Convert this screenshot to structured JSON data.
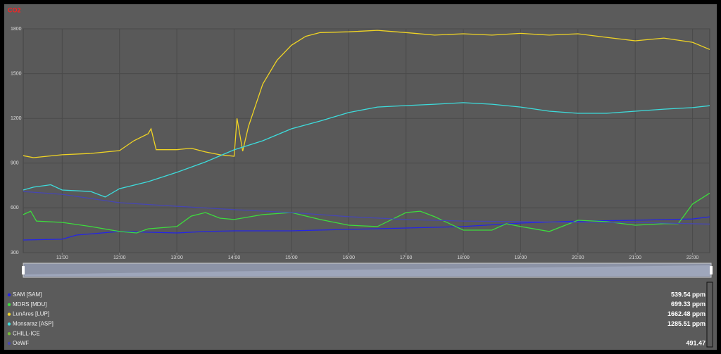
{
  "chart_data": {
    "type": "line",
    "title": "CO2",
    "grid": true,
    "ylim": [
      300,
      1800
    ],
    "yticks": [
      300,
      600,
      900,
      1200,
      1500,
      1800
    ],
    "xlim": [
      10.32,
      22.3
    ],
    "xticks": [
      {
        "value": 11,
        "label": "11:00"
      },
      {
        "value": 12,
        "label": "12:00"
      },
      {
        "value": 13,
        "label": "13:00"
      },
      {
        "value": 14,
        "label": "14:00"
      },
      {
        "value": 15,
        "label": "15:00"
      },
      {
        "value": 16,
        "label": "16:00"
      },
      {
        "value": 17,
        "label": "17:00"
      },
      {
        "value": 18,
        "label": "18:00"
      },
      {
        "value": 19,
        "label": "19:00"
      },
      {
        "value": 20,
        "label": "20:00"
      },
      {
        "value": 21,
        "label": "21:00"
      },
      {
        "value": 22,
        "label": "22:00"
      }
    ],
    "series": [
      {
        "name": "SAM [SAM]",
        "color": "#2424e8",
        "current": "539.54 ppm",
        "x": [
          10.32,
          11,
          11.25,
          12,
          13,
          13.5,
          14,
          15,
          16,
          17,
          18,
          19,
          20,
          21,
          22,
          22.3
        ],
        "values": [
          385,
          390,
          418,
          442,
          432,
          442,
          446,
          446,
          456,
          465,
          475,
          498,
          512,
          517,
          526,
          540
        ]
      },
      {
        "name": "MDRS [MDU]",
        "color": "#3ddc3d",
        "current": "699.33 ppm",
        "x": [
          10.32,
          10.45,
          10.55,
          11,
          11.5,
          12,
          12.3,
          12.5,
          13,
          13.25,
          13.5,
          13.75,
          14,
          14.5,
          15,
          15.5,
          16,
          16.5,
          17,
          17.25,
          17.5,
          18,
          18.5,
          18.75,
          19,
          19.5,
          20,
          20.5,
          21,
          21.5,
          21.75,
          22,
          22.3
        ],
        "values": [
          555,
          578,
          512,
          503,
          475,
          442,
          432,
          460,
          475,
          545,
          569,
          531,
          522,
          555,
          569,
          522,
          484,
          475,
          569,
          578,
          541,
          451,
          451,
          494,
          475,
          442,
          517,
          508,
          484,
          494,
          494,
          626,
          699
        ]
      },
      {
        "name": "LunAres [LUP]",
        "color": "#f0d424",
        "current": "1662.48 ppm",
        "x": [
          10.32,
          10.5,
          11,
          11.5,
          12,
          12.25,
          12.5,
          12.55,
          12.64,
          13,
          13.25,
          13.5,
          13.75,
          14,
          14.05,
          14.15,
          14.25,
          14.5,
          14.75,
          15,
          15.25,
          15.5,
          16,
          16.5,
          17,
          17.5,
          18,
          18.5,
          19,
          19.5,
          20,
          20.5,
          21,
          21.5,
          22,
          22.3
        ],
        "values": [
          950,
          937,
          956,
          965,
          984,
          1050,
          1097,
          1130,
          990,
          990,
          1000,
          975,
          956,
          946,
          1200,
          980,
          1145,
          1430,
          1590,
          1690,
          1750,
          1775,
          1780,
          1790,
          1775,
          1758,
          1767,
          1758,
          1770,
          1758,
          1767,
          1743,
          1720,
          1738,
          1710,
          1662
        ]
      },
      {
        "name": "Monsaraz [ASP]",
        "color": "#3ddcdc",
        "current": "1285.51 ppm",
        "x": [
          10.32,
          10.5,
          10.8,
          11,
          11.5,
          11.75,
          12,
          12.5,
          13,
          13.5,
          14,
          14.5,
          15,
          15.5,
          16,
          16.5,
          17,
          17.5,
          18,
          18.5,
          19,
          19.5,
          20,
          20.5,
          21,
          21.5,
          22,
          22.3
        ],
        "values": [
          720,
          739,
          755,
          720,
          710,
          673,
          729,
          776,
          838,
          908,
          989,
          1050,
          1130,
          1182,
          1239,
          1276,
          1286,
          1295,
          1305,
          1295,
          1276,
          1248,
          1234,
          1234,
          1248,
          1262,
          1272,
          1285
        ]
      },
      {
        "name": "CHILL-ICE",
        "color": "#77bb33"
      },
      {
        "name": "OeWF",
        "color": "#4646b4",
        "current": "491.47",
        "x": [
          10.32,
          11,
          12,
          13,
          14,
          15,
          16,
          17,
          18,
          19,
          20,
          21,
          22,
          22.3
        ],
        "values": [
          710,
          691,
          635,
          611,
          588,
          569,
          541,
          522,
          512,
          508,
          503,
          503,
          494,
          491.47
        ]
      }
    ]
  }
}
